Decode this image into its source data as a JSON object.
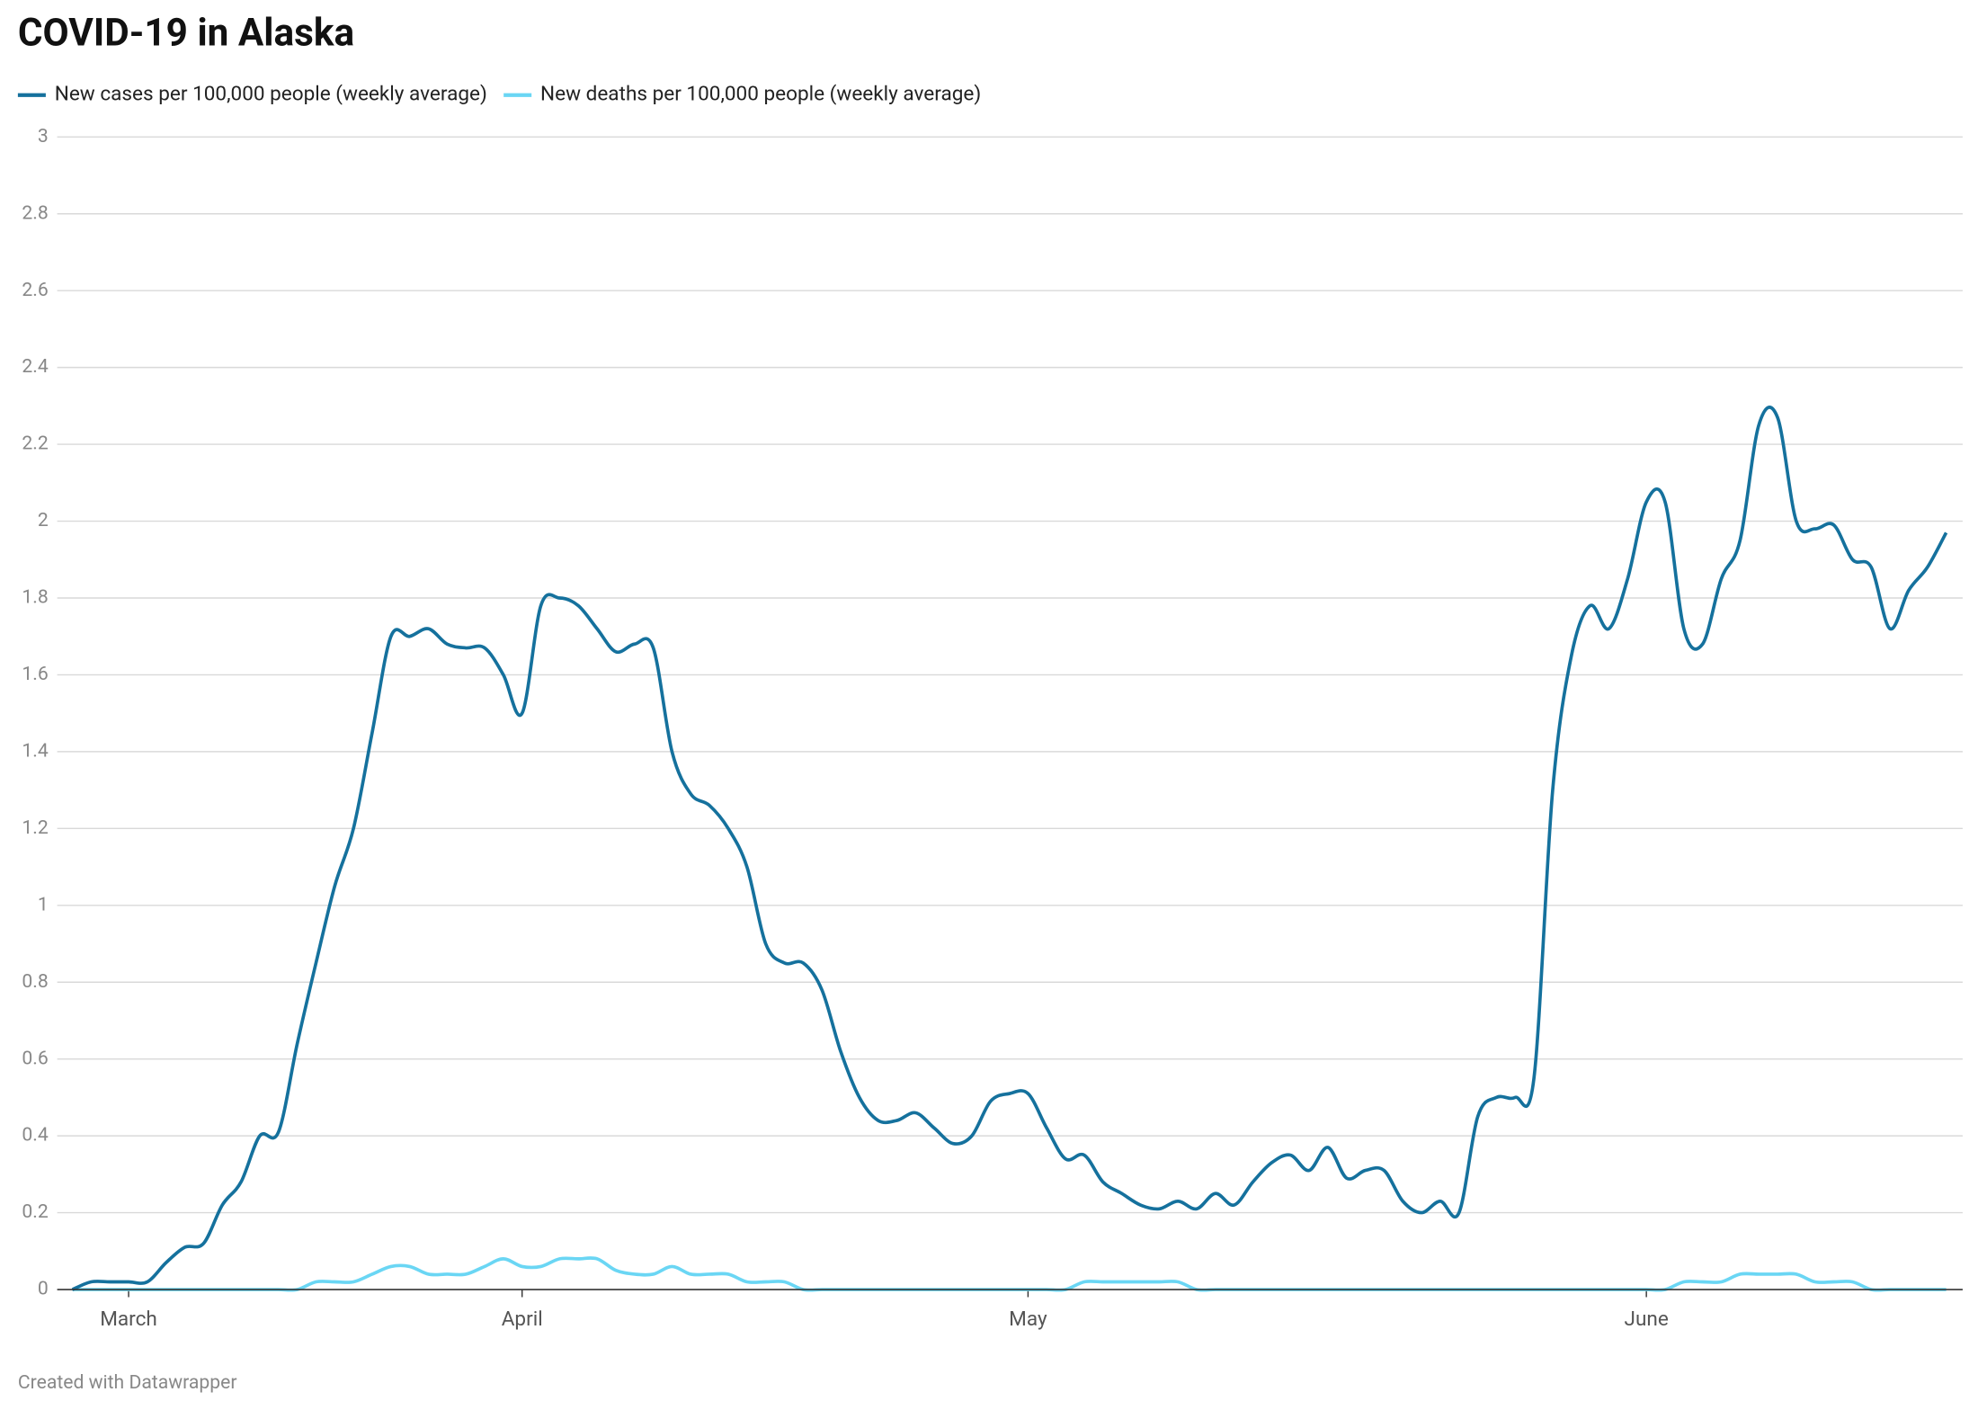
{
  "chart_data": {
    "type": "line",
    "title": "COVID-19 in Alaska",
    "footer": "Created with Datawrapper",
    "categories": [
      null,
      null,
      null,
      "March",
      null,
      null,
      null,
      null,
      null,
      null,
      null,
      null,
      null,
      null,
      null,
      null,
      null,
      null,
      null,
      null,
      null,
      null,
      null,
      null,
      "April",
      null,
      null,
      null,
      null,
      null,
      null,
      null,
      null,
      null,
      null,
      null,
      null,
      null,
      null,
      null,
      null,
      null,
      null,
      null,
      null,
      null,
      null,
      null,
      null,
      null,
      null,
      "May",
      null,
      null,
      null,
      null,
      null,
      null,
      null,
      null,
      null,
      null,
      null,
      null,
      null,
      null,
      null,
      null,
      null,
      null,
      null,
      null,
      null,
      null,
      null,
      null,
      null,
      null,
      null,
      null,
      null,
      null,
      null,
      null,
      "June",
      null,
      null,
      null,
      null,
      null,
      null,
      null,
      null,
      null,
      null,
      null,
      null,
      null,
      null,
      null,
      null
    ],
    "series": [
      {
        "name": "New cases per 100,000 people (weekly average)",
        "color": "#15719d",
        "values": [
          0,
          0.02,
          0.02,
          0.02,
          0.02,
          0.07,
          0.11,
          0.12,
          0.22,
          0.28,
          0.4,
          0.41,
          0.64,
          0.85,
          1.05,
          1.2,
          1.45,
          1.7,
          1.7,
          1.72,
          1.68,
          1.67,
          1.67,
          1.6,
          1.5,
          1.78,
          1.8,
          1.78,
          1.72,
          1.66,
          1.68,
          1.67,
          1.4,
          1.29,
          1.26,
          1.2,
          1.1,
          0.9,
          0.85,
          0.85,
          0.78,
          0.62,
          0.5,
          0.44,
          0.44,
          0.46,
          0.42,
          0.38,
          0.4,
          0.49,
          0.51,
          0.51,
          0.42,
          0.34,
          0.35,
          0.28,
          0.25,
          0.22,
          0.21,
          0.23,
          0.21,
          0.25,
          0.22,
          0.28,
          0.33,
          0.35,
          0.31,
          0.37,
          0.29,
          0.31,
          0.31,
          0.23,
          0.2,
          0.23,
          0.2,
          0.45,
          0.5,
          0.5,
          0.55,
          1.3,
          1.65,
          1.78,
          1.72,
          1.85,
          2.05,
          2.05,
          1.72,
          1.68,
          1.85,
          1.95,
          2.25,
          2.27,
          2.0,
          1.98,
          1.99,
          1.9,
          1.88,
          1.72,
          1.82,
          1.88,
          1.97
        ]
      },
      {
        "name": "New deaths per 100,000 people (weekly average)",
        "color": "#6ad6f4",
        "values": [
          0,
          0,
          0,
          0,
          0,
          0,
          0,
          0,
          0,
          0,
          0,
          0,
          0,
          0.02,
          0.02,
          0.02,
          0.04,
          0.06,
          0.06,
          0.04,
          0.04,
          0.04,
          0.06,
          0.08,
          0.06,
          0.06,
          0.08,
          0.08,
          0.08,
          0.05,
          0.04,
          0.04,
          0.06,
          0.04,
          0.04,
          0.04,
          0.02,
          0.02,
          0.02,
          0,
          0,
          0,
          0,
          0,
          0,
          0,
          0,
          0,
          0,
          0,
          0,
          0,
          0,
          0,
          0.02,
          0.02,
          0.02,
          0.02,
          0.02,
          0.02,
          0,
          0,
          0,
          0,
          0,
          0,
          0,
          0,
          0,
          0,
          0,
          0,
          0,
          0,
          0,
          0,
          0,
          0,
          0,
          0,
          0,
          0,
          0,
          0,
          0,
          0,
          0.02,
          0.02,
          0.02,
          0.04,
          0.04,
          0.04,
          0.04,
          0.02,
          0.02,
          0.02,
          0,
          0,
          0,
          0,
          0
        ]
      }
    ],
    "ylim": [
      0,
      3
    ],
    "yticks": [
      0,
      0.2,
      0.4,
      0.6,
      0.8,
      1,
      1.2,
      1.4,
      1.6,
      1.8,
      2,
      2.2,
      2.4,
      2.6,
      2.8,
      3
    ],
    "grid": true,
    "legend": "top"
  }
}
